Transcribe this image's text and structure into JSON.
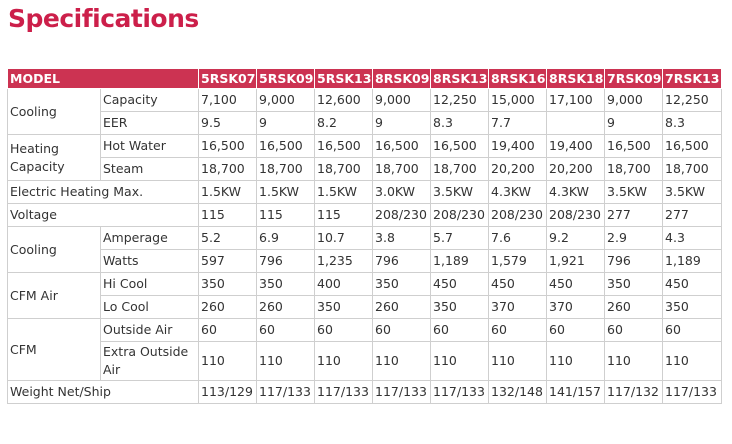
{
  "title": "Specifications",
  "table": {
    "header": [
      "MODEL",
      "5RSK07",
      "5RSK09",
      "5RSK13",
      "8RSK09",
      "8RSK13",
      "8RSK16",
      "8RSK18",
      "7RSK09",
      "7RSK13"
    ],
    "groups": {
      "cooling": "Cooling",
      "heating_capacity": "Heating Capacity",
      "electric_heating": "Electric Heating Max.",
      "voltage": "Voltage",
      "cooling2": "Cooling",
      "cfm_air": "CFM Air",
      "cfm": "CFM",
      "weight": "Weight Net/Ship"
    },
    "rows": {
      "capacity": {
        "label": "Capacity",
        "values": [
          "7,100",
          "9,000",
          "12,600",
          "9,000",
          "12,250",
          "15,000",
          "17,100",
          "9,000",
          "12,250"
        ]
      },
      "eer": {
        "label": "EER",
        "values": [
          "9.5",
          "9",
          "8.2",
          "9",
          "8.3",
          "7.7",
          "",
          "9",
          "8.3"
        ]
      },
      "hot_water": {
        "label": "Hot Water",
        "values": [
          "16,500",
          "16,500",
          "16,500",
          "16,500",
          "16,500",
          "19,400",
          "19,400",
          "16,500",
          "16,500"
        ]
      },
      "steam": {
        "label": "Steam",
        "values": [
          "18,700",
          "18,700",
          "18,700",
          "18,700",
          "18,700",
          "20,200",
          "20,200",
          "18,700",
          "18,700"
        ]
      },
      "electric_heating": {
        "values": [
          "1.5KW",
          "1.5KW",
          "1.5KW",
          "3.0KW",
          "3.5KW",
          "4.3KW",
          "4.3KW",
          "3.5KW",
          "3.5KW"
        ]
      },
      "voltage": {
        "values": [
          "115",
          "115",
          "115",
          "208/230",
          "208/230",
          "208/230",
          "208/230",
          "277",
          "277"
        ]
      },
      "amperage": {
        "label": "Amperage",
        "values": [
          "5.2",
          "6.9",
          "10.7",
          "3.8",
          "5.7",
          "7.6",
          "9.2",
          "2.9",
          "4.3"
        ]
      },
      "watts": {
        "label": "Watts",
        "values": [
          "597",
          "796",
          "1,235",
          "796",
          "1,189",
          "1,579",
          "1,921",
          "796",
          "1,189"
        ]
      },
      "hi_cool": {
        "label": "Hi Cool",
        "values": [
          "350",
          "350",
          "400",
          "350",
          "450",
          "450",
          "450",
          "350",
          "450"
        ]
      },
      "lo_cool": {
        "label": "Lo Cool",
        "values": [
          "260",
          "260",
          "350",
          "260",
          "350",
          "370",
          "370",
          "260",
          "350"
        ]
      },
      "outside_air": {
        "label": "Outside Air",
        "values": [
          "60",
          "60",
          "60",
          "60",
          "60",
          "60",
          "60",
          "60",
          "60"
        ]
      },
      "extra_outside_air": {
        "label": "Extra Outside Air",
        "values": [
          "110",
          "110",
          "110",
          "110",
          "110",
          "110",
          "110",
          "110",
          "110"
        ]
      },
      "weight": {
        "values": [
          "113/129",
          "117/133",
          "117/133",
          "117/133",
          "117/133",
          "132/148",
          "141/157",
          "117/132",
          "117/133"
        ]
      }
    }
  },
  "colors": {
    "title": "#cc1f4a",
    "header_bg": "#cc3352",
    "header_text": "#ffffff",
    "grid": "#cfcfcf",
    "text": "#333333"
  }
}
